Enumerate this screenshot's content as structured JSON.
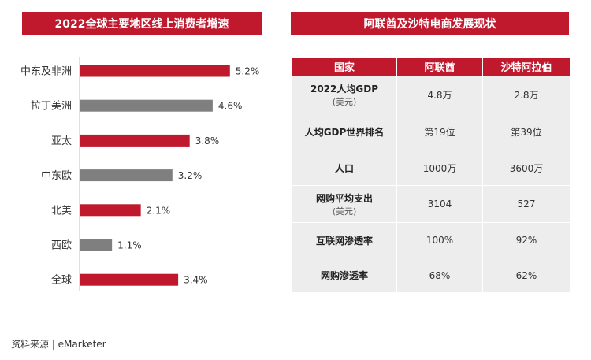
{
  "left_panel": {
    "title": "2022全球主要地区线上消费者增速"
  },
  "right_panel": {
    "title": "阿联酋及沙特电商发展现状"
  },
  "chart_data": {
    "type": "bar",
    "orientation": "horizontal",
    "title": "2022全球主要地区线上消费者增速",
    "categories": [
      "中东及非洲",
      "拉丁美洲",
      "亚太",
      "中东欧",
      "北美",
      "西欧",
      "全球"
    ],
    "values": [
      5.2,
      4.6,
      3.8,
      3.2,
      2.1,
      1.1,
      3.4
    ],
    "labels": [
      "5.2%",
      "4.6%",
      "3.8%",
      "3.2%",
      "2.1%",
      "1.1%",
      "3.4%"
    ],
    "bar_colors": [
      "#c0192e",
      "#7f7f7f",
      "#c0192e",
      "#7f7f7f",
      "#c0192e",
      "#7f7f7f",
      "#c0192e"
    ],
    "xlim": [
      0,
      6
    ],
    "grid": false,
    "legend": "none"
  },
  "table": {
    "headers": [
      "国家",
      "阿联酋",
      "沙特阿拉伯"
    ],
    "rows": [
      {
        "label": "2022人均GDP",
        "sublabel": "(美元)",
        "uae": "4.8万",
        "saudi": "2.8万"
      },
      {
        "label": "人均GDP世界排名",
        "sublabel": "",
        "uae": "第19位",
        "saudi": "第39位"
      },
      {
        "label": "人口",
        "sublabel": "",
        "uae": "1000万",
        "saudi": "3600万"
      },
      {
        "label": "网购平均支出",
        "sublabel": "(美元)",
        "uae": "3104",
        "saudi": "527"
      },
      {
        "label": "互联网渗透率",
        "sublabel": "",
        "uae": "100%",
        "saudi": "92%"
      },
      {
        "label": "网购渗透率",
        "sublabel": "",
        "uae": "68%",
        "saudi": "62%"
      }
    ]
  },
  "source": "资料来源 | eMarketer",
  "colors": {
    "accent": "#c0192e",
    "secondary": "#7f7f7f",
    "cell_bg": "#ededed"
  }
}
